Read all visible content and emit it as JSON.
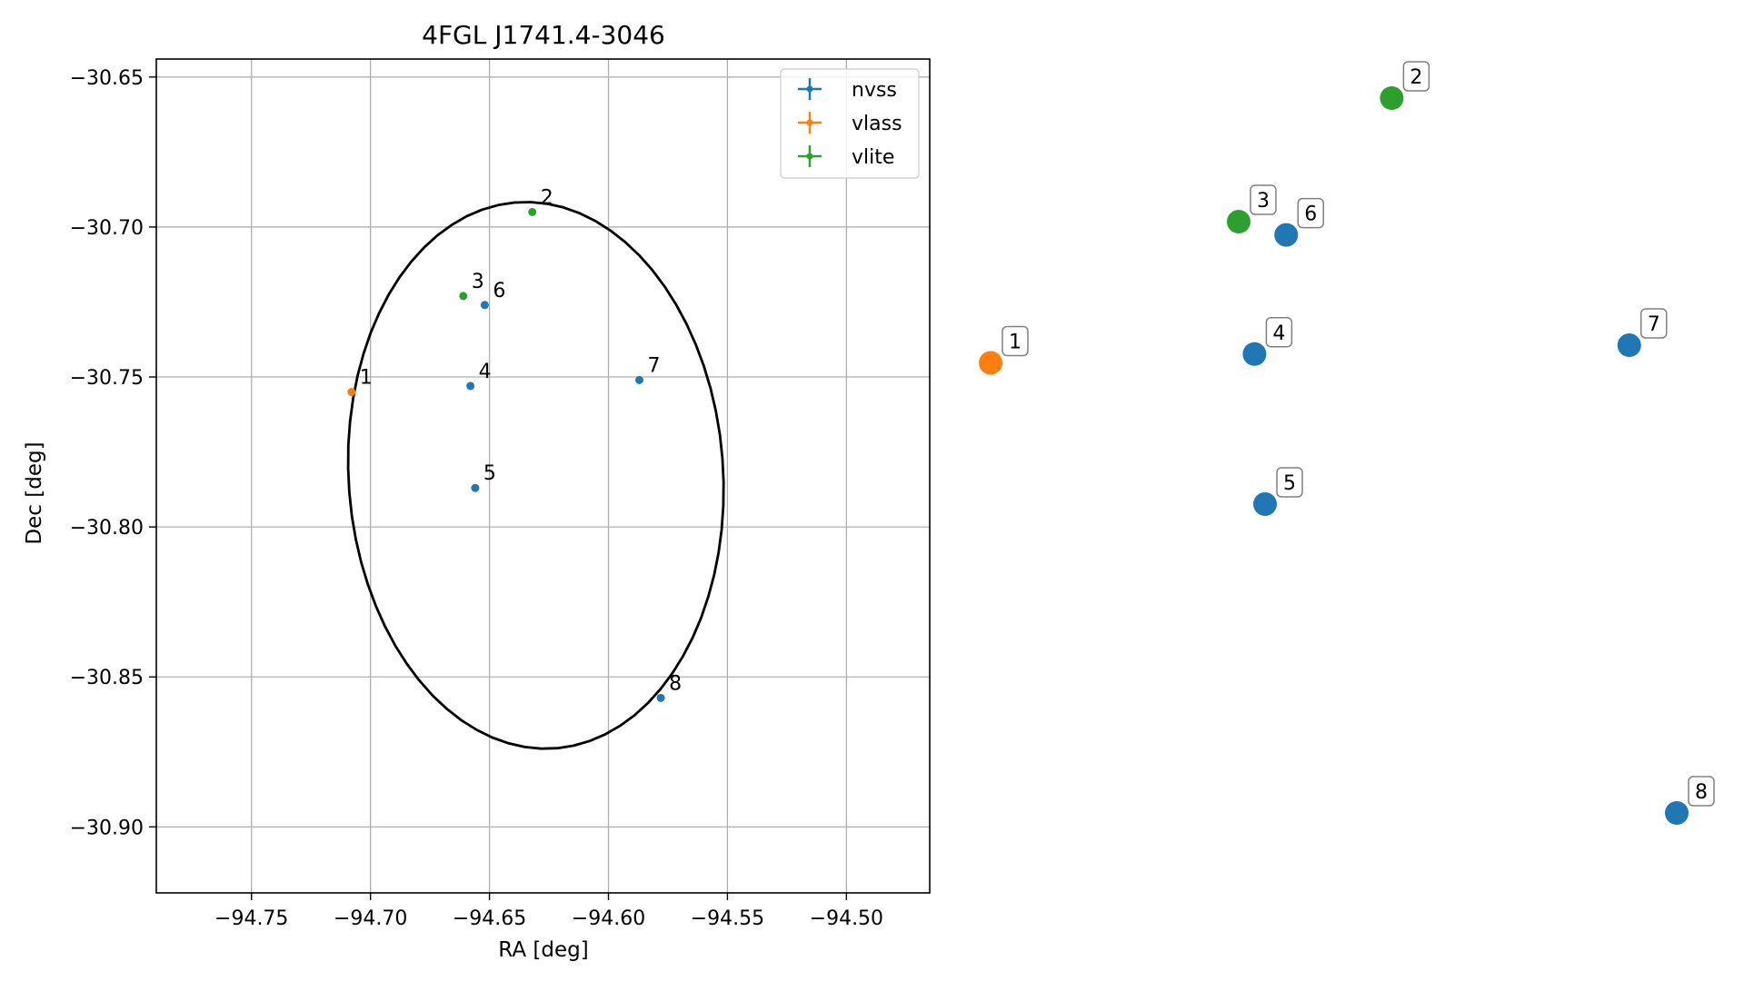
{
  "chart_data": [
    {
      "type": "scatter",
      "title": "4FGL J1741.4-3046",
      "xlabel": "RA [deg]",
      "ylabel": "Dec [deg]",
      "xlim": [
        -94.79,
        -94.465
      ],
      "ylim": [
        -30.922,
        -30.644
      ],
      "xticks": [
        -94.75,
        -94.7,
        -94.65,
        -94.6,
        -94.55,
        -94.5
      ],
      "xtick_labels": [
        "−94.75",
        "−94.70",
        "−94.65",
        "−94.60",
        "−94.55",
        "−94.50"
      ],
      "yticks": [
        -30.65,
        -30.7,
        -30.75,
        -30.8,
        -30.85,
        -30.9
      ],
      "ytick_labels": [
        "−30.65",
        "−30.70",
        "−30.75",
        "−30.80",
        "−30.85",
        "−30.90"
      ],
      "grid": true,
      "legend_position": "top-right",
      "series": [
        {
          "name": "nvss",
          "color": "#1f77b4",
          "points": [
            {
              "label": "4",
              "x": -94.658,
              "y": -30.753
            },
            {
              "label": "5",
              "x": -94.656,
              "y": -30.787
            },
            {
              "label": "6",
              "x": -94.652,
              "y": -30.726
            },
            {
              "label": "7",
              "x": -94.587,
              "y": -30.751
            },
            {
              "label": "8",
              "x": -94.578,
              "y": -30.857
            }
          ]
        },
        {
          "name": "vlass",
          "color": "#ff7f0e",
          "points": [
            {
              "label": "1",
              "x": -94.708,
              "y": -30.755
            }
          ]
        },
        {
          "name": "vlite",
          "color": "#2ca02c",
          "points": [
            {
              "label": "2",
              "x": -94.632,
              "y": -30.695
            },
            {
              "label": "3",
              "x": -94.661,
              "y": -30.723
            }
          ]
        }
      ],
      "ellipse": {
        "color": "#000000",
        "center": [
          -94.6305,
          -30.7828
        ],
        "semi_axis_ra": 0.0785,
        "semi_axis_dec": 0.0915,
        "rotation_deg": 10
      }
    },
    {
      "type": "scatter",
      "title": "",
      "points": [
        {
          "label": "1",
          "color": "#ff7f0e",
          "x": -94.708,
          "y": -30.755
        },
        {
          "label": "2",
          "color": "#2ca02c",
          "x": -94.632,
          "y": -30.695
        },
        {
          "label": "3",
          "color": "#2ca02c",
          "x": -94.661,
          "y": -30.723
        },
        {
          "label": "4",
          "color": "#1f77b4",
          "x": -94.658,
          "y": -30.753
        },
        {
          "label": "5",
          "color": "#1f77b4",
          "x": -94.656,
          "y": -30.787
        },
        {
          "label": "6",
          "color": "#1f77b4",
          "x": -94.652,
          "y": -30.726
        },
        {
          "label": "7",
          "color": "#1f77b4",
          "x": -94.587,
          "y": -30.751
        },
        {
          "label": "8",
          "color": "#1f77b4",
          "x": -94.578,
          "y": -30.857
        }
      ]
    }
  ]
}
